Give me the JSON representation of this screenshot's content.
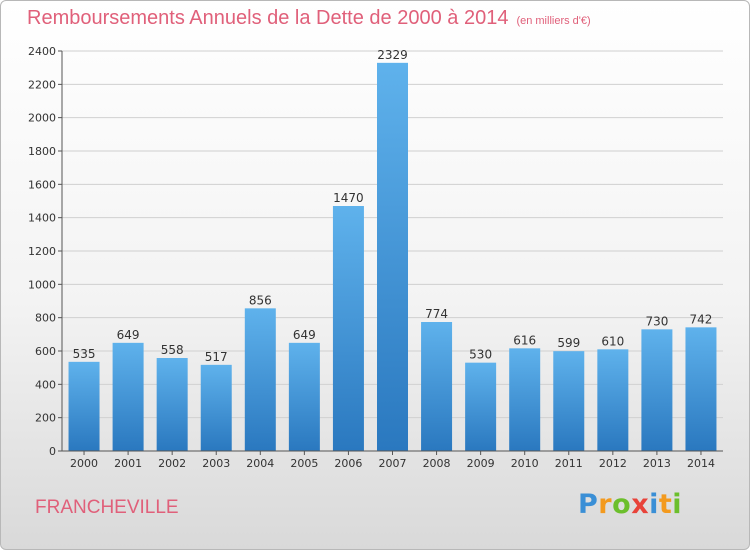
{
  "title": "Remboursements Annuels de la Dette de 2000 à 2014",
  "unit": "(en milliers d'€)",
  "city": "FRANCHEVILLE",
  "logo": {
    "text": "Proxiti",
    "letters": [
      "P",
      "r",
      "o",
      "x",
      "i",
      "t",
      "i"
    ],
    "colors": [
      "#3a8fd6",
      "#f39a1e",
      "#6cbf2c",
      "#e8433a",
      "#3a8fd6",
      "#f39a1e",
      "#6cbf2c"
    ]
  },
  "colors": {
    "bar_top": "#5fb2ec",
    "bar_bottom": "#2a78bf",
    "title": "#e0607a",
    "grid": "#d0d0d0"
  },
  "chart_data": {
    "type": "bar",
    "title": "Remboursements Annuels de la Dette de 2000 à 2014",
    "subtitle": "(en milliers d'€)",
    "xlabel": "",
    "ylabel": "",
    "ylim": [
      0,
      2400
    ],
    "yticks": [
      0,
      200,
      400,
      600,
      800,
      1000,
      1200,
      1400,
      1600,
      1800,
      2000,
      2200,
      2400
    ],
    "grid": true,
    "categories": [
      "2000",
      "2001",
      "2002",
      "2003",
      "2004",
      "2005",
      "2006",
      "2007",
      "2008",
      "2009",
      "2010",
      "2011",
      "2012",
      "2013",
      "2014"
    ],
    "values": [
      535,
      649,
      558,
      517,
      856,
      649,
      1470,
      2329,
      774,
      530,
      616,
      599,
      610,
      730,
      742
    ]
  }
}
